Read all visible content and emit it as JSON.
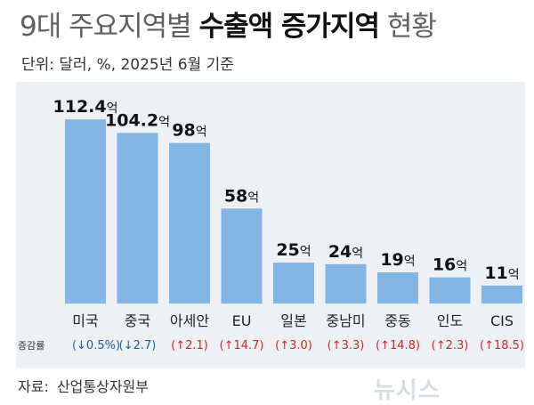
{
  "header": {
    "title_prefix": "9대 주요지역별",
    "title_emphasis": "수출액 증가지역",
    "title_suffix": "현황",
    "subtitle": "단위: 달러, %, 2025년 6월 기준"
  },
  "chart_data": {
    "type": "bar",
    "categories": [
      "미국",
      "중국",
      "아세안",
      "EU",
      "일본",
      "중남미",
      "중동",
      "인도",
      "CIS"
    ],
    "values": [
      112.4,
      104.2,
      98,
      58,
      25,
      24,
      19,
      16,
      11
    ],
    "value_labels": [
      "112.4",
      "104.2",
      "98",
      "58",
      "25",
      "24",
      "19",
      "16",
      "11"
    ],
    "value_unit": "억",
    "ylim": [
      0,
      125
    ],
    "growth_label": "증감률",
    "growth": [
      {
        "direction": "down",
        "value": "0.5%"
      },
      {
        "direction": "down",
        "value": "2.7"
      },
      {
        "direction": "up",
        "value": "2.1"
      },
      {
        "direction": "up",
        "value": "14.7"
      },
      {
        "direction": "up",
        "value": "3.0"
      },
      {
        "direction": "up",
        "value": "3.3"
      },
      {
        "direction": "up",
        "value": "14.8"
      },
      {
        "direction": "up",
        "value": "2.3"
      },
      {
        "direction": "up",
        "value": "18.5"
      }
    ],
    "colors": {
      "bar": "#82b4e4",
      "down": "#1a5fb4",
      "up": "#d7261e"
    },
    "grid": false,
    "legend": "none"
  },
  "footer": {
    "source_label": "자료:",
    "source": "산업통상자원부",
    "watermark": "뉴시스"
  }
}
